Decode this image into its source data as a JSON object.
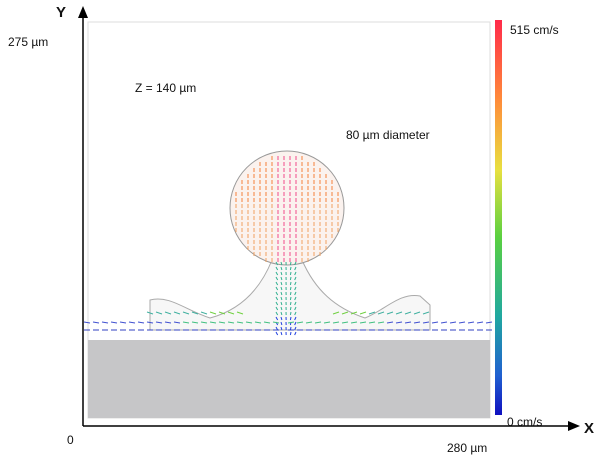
{
  "axes": {
    "y_label": "Y",
    "x_label": "X",
    "origin": "0",
    "y_max": "275 µm",
    "x_max": "280 µm"
  },
  "annotations": {
    "depth": "Z = 140 µm",
    "diameter": "80 µm diameter"
  },
  "colorbar": {
    "max_label": "515 cm/s",
    "min_label": "0 cm/s"
  }
}
